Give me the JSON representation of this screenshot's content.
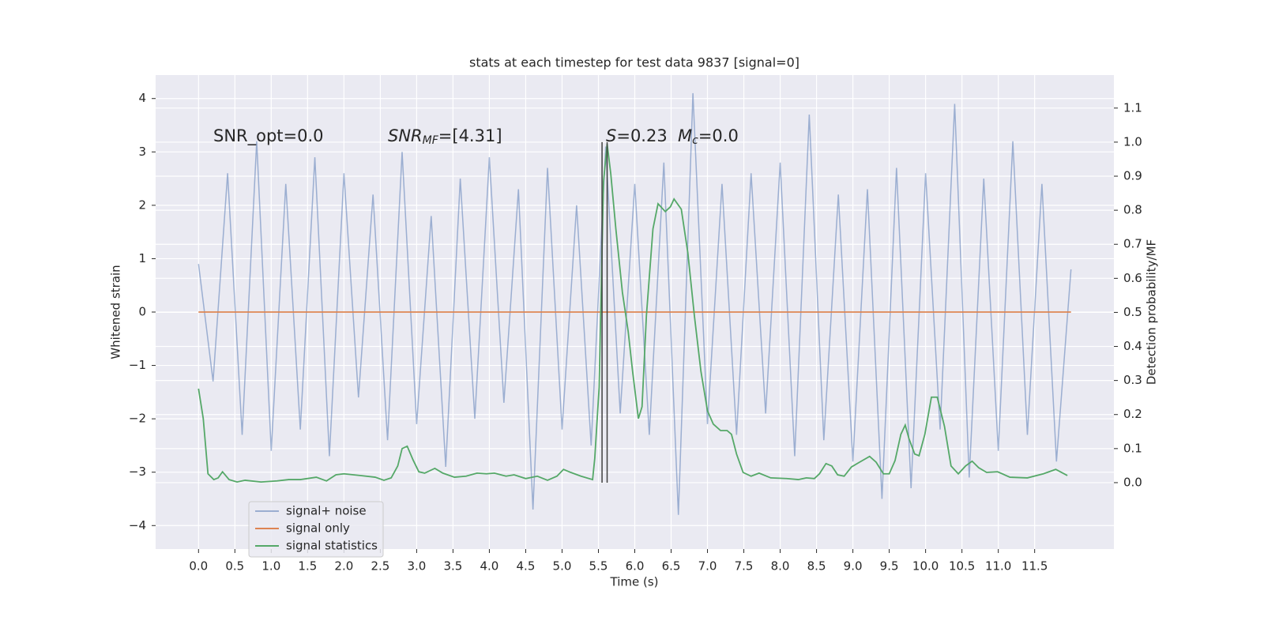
{
  "chart_data": {
    "type": "line",
    "title": "stats at each timestep for test data 9837 [signal=0]",
    "x_label": "Time (s)",
    "y_label": "Whitened strain",
    "y2_label": "Detection probability/MF",
    "xlim": [
      -0.59,
      12.59
    ],
    "ylim": [
      -4.44,
      4.44
    ],
    "y2lim": [
      -0.195,
      1.197
    ],
    "xticks": [
      {
        "value": 0,
        "label": "0.0"
      },
      0.5,
      {
        "value": 1,
        "label": "1.0"
      },
      1.5,
      {
        "value": 2,
        "label": "2.0"
      },
      2.5,
      {
        "value": 3,
        "label": "3.0"
      },
      3.5,
      {
        "value": 4,
        "label": "4.0"
      },
      4.5,
      {
        "value": 5,
        "label": "5.0"
      },
      5.5,
      {
        "value": 6,
        "label": "6.0"
      },
      6.5,
      {
        "value": 7,
        "label": "7.0"
      },
      7.5,
      {
        "value": 8,
        "label": "8.0"
      },
      8.5,
      {
        "value": 9,
        "label": "9.0"
      },
      9.5,
      {
        "value": 10,
        "label": "10.0"
      },
      10.5,
      {
        "value": 11,
        "label": "11.0"
      },
      11.5
    ],
    "yticks": [
      {
        "value": -4,
        "label": "−4"
      },
      {
        "value": -3,
        "label": "−3"
      },
      {
        "value": -2,
        "label": "−2"
      },
      {
        "value": -1,
        "label": "−1"
      },
      0,
      1,
      2,
      3,
      4
    ],
    "y2ticks": [
      {
        "value": 0,
        "label": "0.0"
      },
      0.1,
      0.2,
      0.3,
      0.4,
      0.5,
      0.6,
      0.7,
      0.8,
      0.9,
      {
        "value": 1,
        "label": "1.0"
      },
      1.1
    ],
    "grid": true,
    "legend": "lower left",
    "series": [
      {
        "name": "signal+ noise",
        "color": "#4c72b0",
        "opacity": 0.5,
        "x": [
          0,
          0.2,
          0.4,
          0.6,
          0.8,
          1,
          1.2,
          1.4,
          1.6,
          1.8,
          2,
          2.2,
          2.4,
          2.6,
          2.8,
          3,
          3.2,
          3.4,
          3.6,
          3.8,
          4,
          4.2,
          4.4,
          4.6,
          4.8,
          5,
          5.2,
          5.4,
          5.6,
          5.8,
          6,
          6.2,
          6.4,
          6.6,
          6.8,
          7,
          7.2,
          7.4,
          7.6,
          7.8,
          8,
          8.2,
          8.4,
          8.6,
          8.8,
          9,
          9.2,
          9.4,
          9.6,
          9.8,
          10,
          10.2,
          10.4,
          10.6,
          10.8,
          11,
          11.2,
          11.4,
          11.6,
          11.8,
          12
        ],
        "values": [
          0.9,
          -1.3,
          2.6,
          -2.3,
          3.2,
          -2.6,
          2.4,
          -2.2,
          2.9,
          -2.7,
          2.6,
          -1.6,
          2.2,
          -2.4,
          3.0,
          -2.1,
          1.8,
          -2.9,
          2.5,
          -2.0,
          2.9,
          -1.7,
          2.3,
          -3.7,
          2.7,
          -2.2,
          2.0,
          -2.5,
          3.1,
          -1.9,
          2.4,
          -2.3,
          2.8,
          -3.8,
          4.1,
          -2.1,
          2.4,
          -2.3,
          2.6,
          -1.9,
          2.8,
          -2.7,
          3.7,
          -2.4,
          2.2,
          -2.8,
          2.3,
          -3.5,
          2.7,
          -3.3,
          2.6,
          -2.2,
          3.9,
          -3.1,
          2.5,
          -2.6,
          3.2,
          -2.3,
          2.4,
          -2.8,
          0.8
        ]
      },
      {
        "name": "signal only",
        "color": "#dd8452",
        "opacity": 1,
        "x": [
          0,
          12
        ],
        "values": [
          0,
          0
        ]
      },
      {
        "name": "signal statistics",
        "color": "#55a868",
        "opacity": 1,
        "axis": "y2",
        "x": [
          0,
          0.065,
          0.13,
          0.21,
          0.27,
          0.33,
          0.42,
          0.53,
          0.64,
          0.86,
          1.08,
          1.24,
          1.4,
          1.62,
          1.76,
          1.89,
          2.0,
          2.22,
          2.43,
          2.55,
          2.65,
          2.74,
          2.8,
          2.87,
          2.95,
          3.03,
          3.11,
          3.25,
          3.36,
          3.52,
          3.68,
          3.83,
          3.96,
          4.07,
          4.23,
          4.34,
          4.5,
          4.66,
          4.8,
          4.93,
          5.02,
          5.12,
          5.26,
          5.42,
          5.45,
          5.51,
          5.57,
          5.62,
          5.67,
          5.74,
          5.83,
          5.91,
          5.97,
          6.05,
          6.1,
          6.16,
          6.25,
          6.32,
          6.42,
          6.49,
          6.54,
          6.64,
          6.73,
          6.82,
          6.91,
          7.0,
          7.08,
          7.18,
          7.27,
          7.33,
          7.4,
          7.49,
          7.6,
          7.71,
          7.87,
          8.09,
          8.25,
          8.36,
          8.47,
          8.54,
          8.63,
          8.71,
          8.79,
          8.88,
          8.98,
          9.09,
          9.23,
          9.32,
          9.42,
          9.5,
          9.58,
          9.66,
          9.72,
          9.77,
          9.85,
          9.91,
          9.99,
          10.08,
          10.16,
          10.26,
          10.35,
          10.45,
          10.55,
          10.64,
          10.73,
          10.84,
          10.99,
          11.16,
          11.4,
          11.62,
          11.79,
          11.95
        ],
        "values": [
          0.276,
          0.188,
          0.026,
          0.009,
          0.014,
          0.032,
          0.009,
          0.002,
          0.007,
          0.002,
          0.005,
          0.009,
          0.009,
          0.016,
          0.005,
          0.023,
          0.026,
          0.021,
          0.016,
          0.007,
          0.014,
          0.049,
          0.1,
          0.107,
          0.067,
          0.032,
          0.028,
          0.042,
          0.028,
          0.016,
          0.019,
          0.028,
          0.026,
          0.028,
          0.019,
          0.023,
          0.012,
          0.019,
          0.007,
          0.019,
          0.039,
          0.03,
          0.019,
          0.009,
          0.072,
          0.28,
          0.884,
          0.995,
          0.907,
          0.745,
          0.559,
          0.443,
          0.327,
          0.188,
          0.223,
          0.49,
          0.745,
          0.819,
          0.796,
          0.81,
          0.833,
          0.803,
          0.675,
          0.49,
          0.327,
          0.211,
          0.172,
          0.153,
          0.153,
          0.142,
          0.084,
          0.03,
          0.019,
          0.028,
          0.014,
          0.012,
          0.009,
          0.014,
          0.012,
          0.026,
          0.056,
          0.049,
          0.023,
          0.019,
          0.046,
          0.06,
          0.077,
          0.06,
          0.026,
          0.026,
          0.065,
          0.142,
          0.169,
          0.13,
          0.084,
          0.079,
          0.142,
          0.251,
          0.251,
          0.165,
          0.049,
          0.026,
          0.049,
          0.063,
          0.044,
          0.03,
          0.032,
          0.016,
          0.014,
          0.026,
          0.039,
          0.021
        ]
      }
    ],
    "vlines": [
      {
        "x": 5.55,
        "ymin": 0,
        "ymax": 1.0,
        "color": "#404040",
        "axis": "y2"
      },
      {
        "x": 5.62,
        "ymin": 0,
        "ymax": 1.0,
        "color": "#404040",
        "axis": "y2"
      }
    ],
    "annotations": [
      {
        "text": "SNR_opt=0.0"
      },
      {
        "base": "SNR",
        "sub": "MF",
        "rest": "=[4.31]"
      },
      {
        "base": "S",
        "rest": "=0.23"
      },
      {
        "base": "M",
        "sub": "c",
        "rest": "=0.0"
      }
    ]
  }
}
